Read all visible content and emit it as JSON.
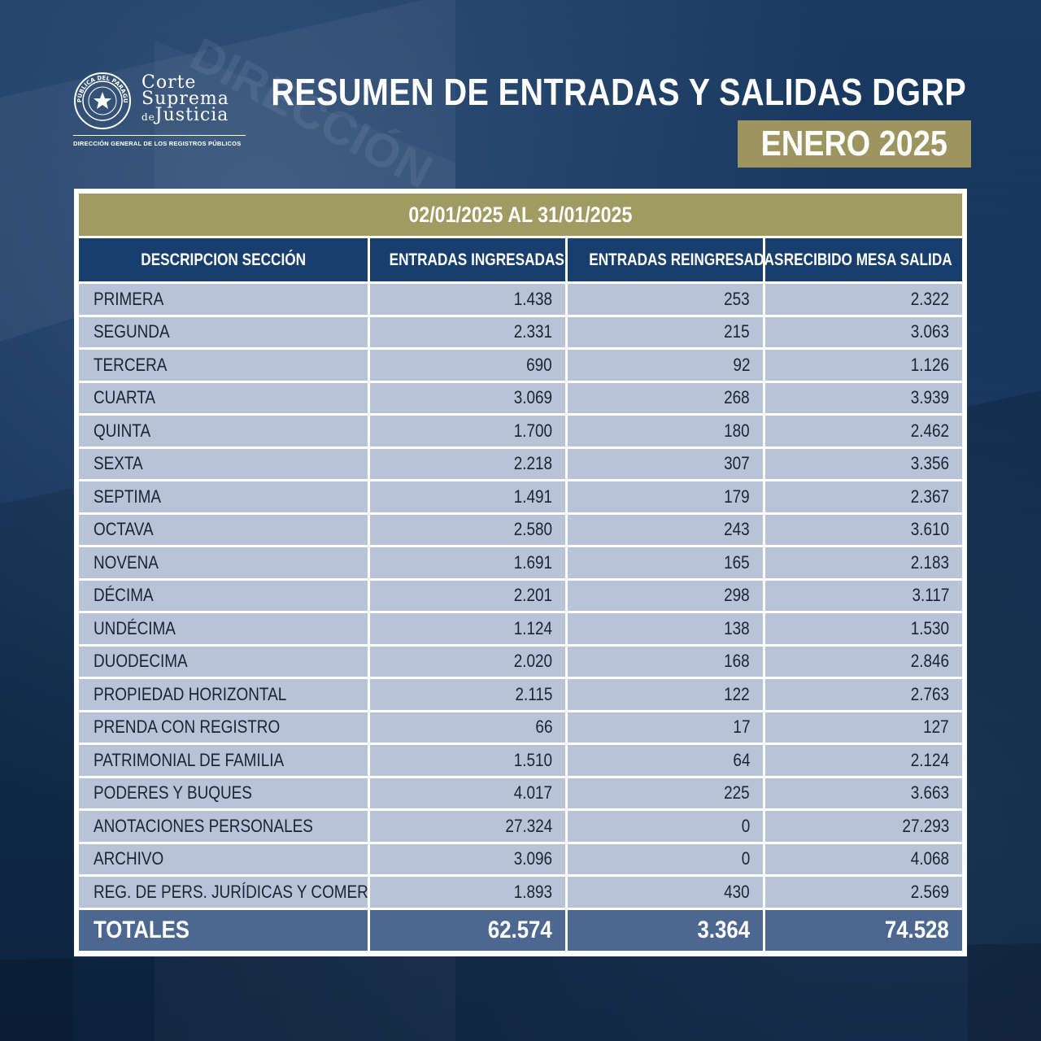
{
  "logo": {
    "line1": "Corte",
    "line2": "Suprema",
    "line3_prefix": "de",
    "line3": "Justicia",
    "seal_text": "REPÚBLICA DEL PARAGUAY",
    "subtitle": "DIRECCIÓN GENERAL DE LOS REGISTROS PÚBLICOS"
  },
  "header": {
    "title": "RESUMEN DE ENTRADAS Y SALIDAS DGRP",
    "subtitle": "ENERO 2025"
  },
  "table": {
    "period": "02/01/2025 AL 31/01/2025",
    "columns": [
      "DESCRIPCION SECCIÓN",
      "ENTRADAS INGRESADAS",
      "ENTRADAS REINGRESADAS",
      "RECIBIDO MESA SALIDA"
    ],
    "rows": [
      [
        "PRIMERA",
        "1.438",
        "253",
        "2.322"
      ],
      [
        "SEGUNDA",
        "2.331",
        "215",
        "3.063"
      ],
      [
        "TERCERA",
        "690",
        "92",
        "1.126"
      ],
      [
        "CUARTA",
        "3.069",
        "268",
        "3.939"
      ],
      [
        "QUINTA",
        "1.700",
        "180",
        "2.462"
      ],
      [
        "SEXTA",
        "2.218",
        "307",
        "3.356"
      ],
      [
        "SEPTIMA",
        "1.491",
        "179",
        "2.367"
      ],
      [
        "OCTAVA",
        "2.580",
        "243",
        "3.610"
      ],
      [
        "NOVENA",
        "1.691",
        "165",
        "2.183"
      ],
      [
        "DÉCIMA",
        "2.201",
        "298",
        "3.117"
      ],
      [
        "UNDÉCIMA",
        "1.124",
        "138",
        "1.530"
      ],
      [
        "DUODECIMA",
        "2.020",
        "168",
        "2.846"
      ],
      [
        "PROPIEDAD HORIZONTAL",
        "2.115",
        "122",
        "2.763"
      ],
      [
        "PRENDA CON REGISTRO",
        "66",
        "17",
        "127"
      ],
      [
        "PATRIMONIAL DE FAMILIA",
        "1.510",
        "64",
        "2.124"
      ],
      [
        "PODERES Y BUQUES",
        "4.017",
        "225",
        "3.663"
      ],
      [
        "ANOTACIONES PERSONALES",
        "27.324",
        "0",
        "27.293"
      ],
      [
        "ARCHIVO",
        "3.096",
        "0",
        "4.068"
      ],
      [
        "REG. DE PERS. JURÍDICAS Y COMERCIO",
        "1.893",
        "430",
        "2.569"
      ]
    ],
    "totals": [
      "TOTALES",
      "62.574",
      "3.364",
      "74.528"
    ]
  },
  "colors": {
    "gold": "#a09a63",
    "navy_header": "#173e6d",
    "row_bg": "#b9c3d8",
    "totals_bg": "#4d6890"
  }
}
